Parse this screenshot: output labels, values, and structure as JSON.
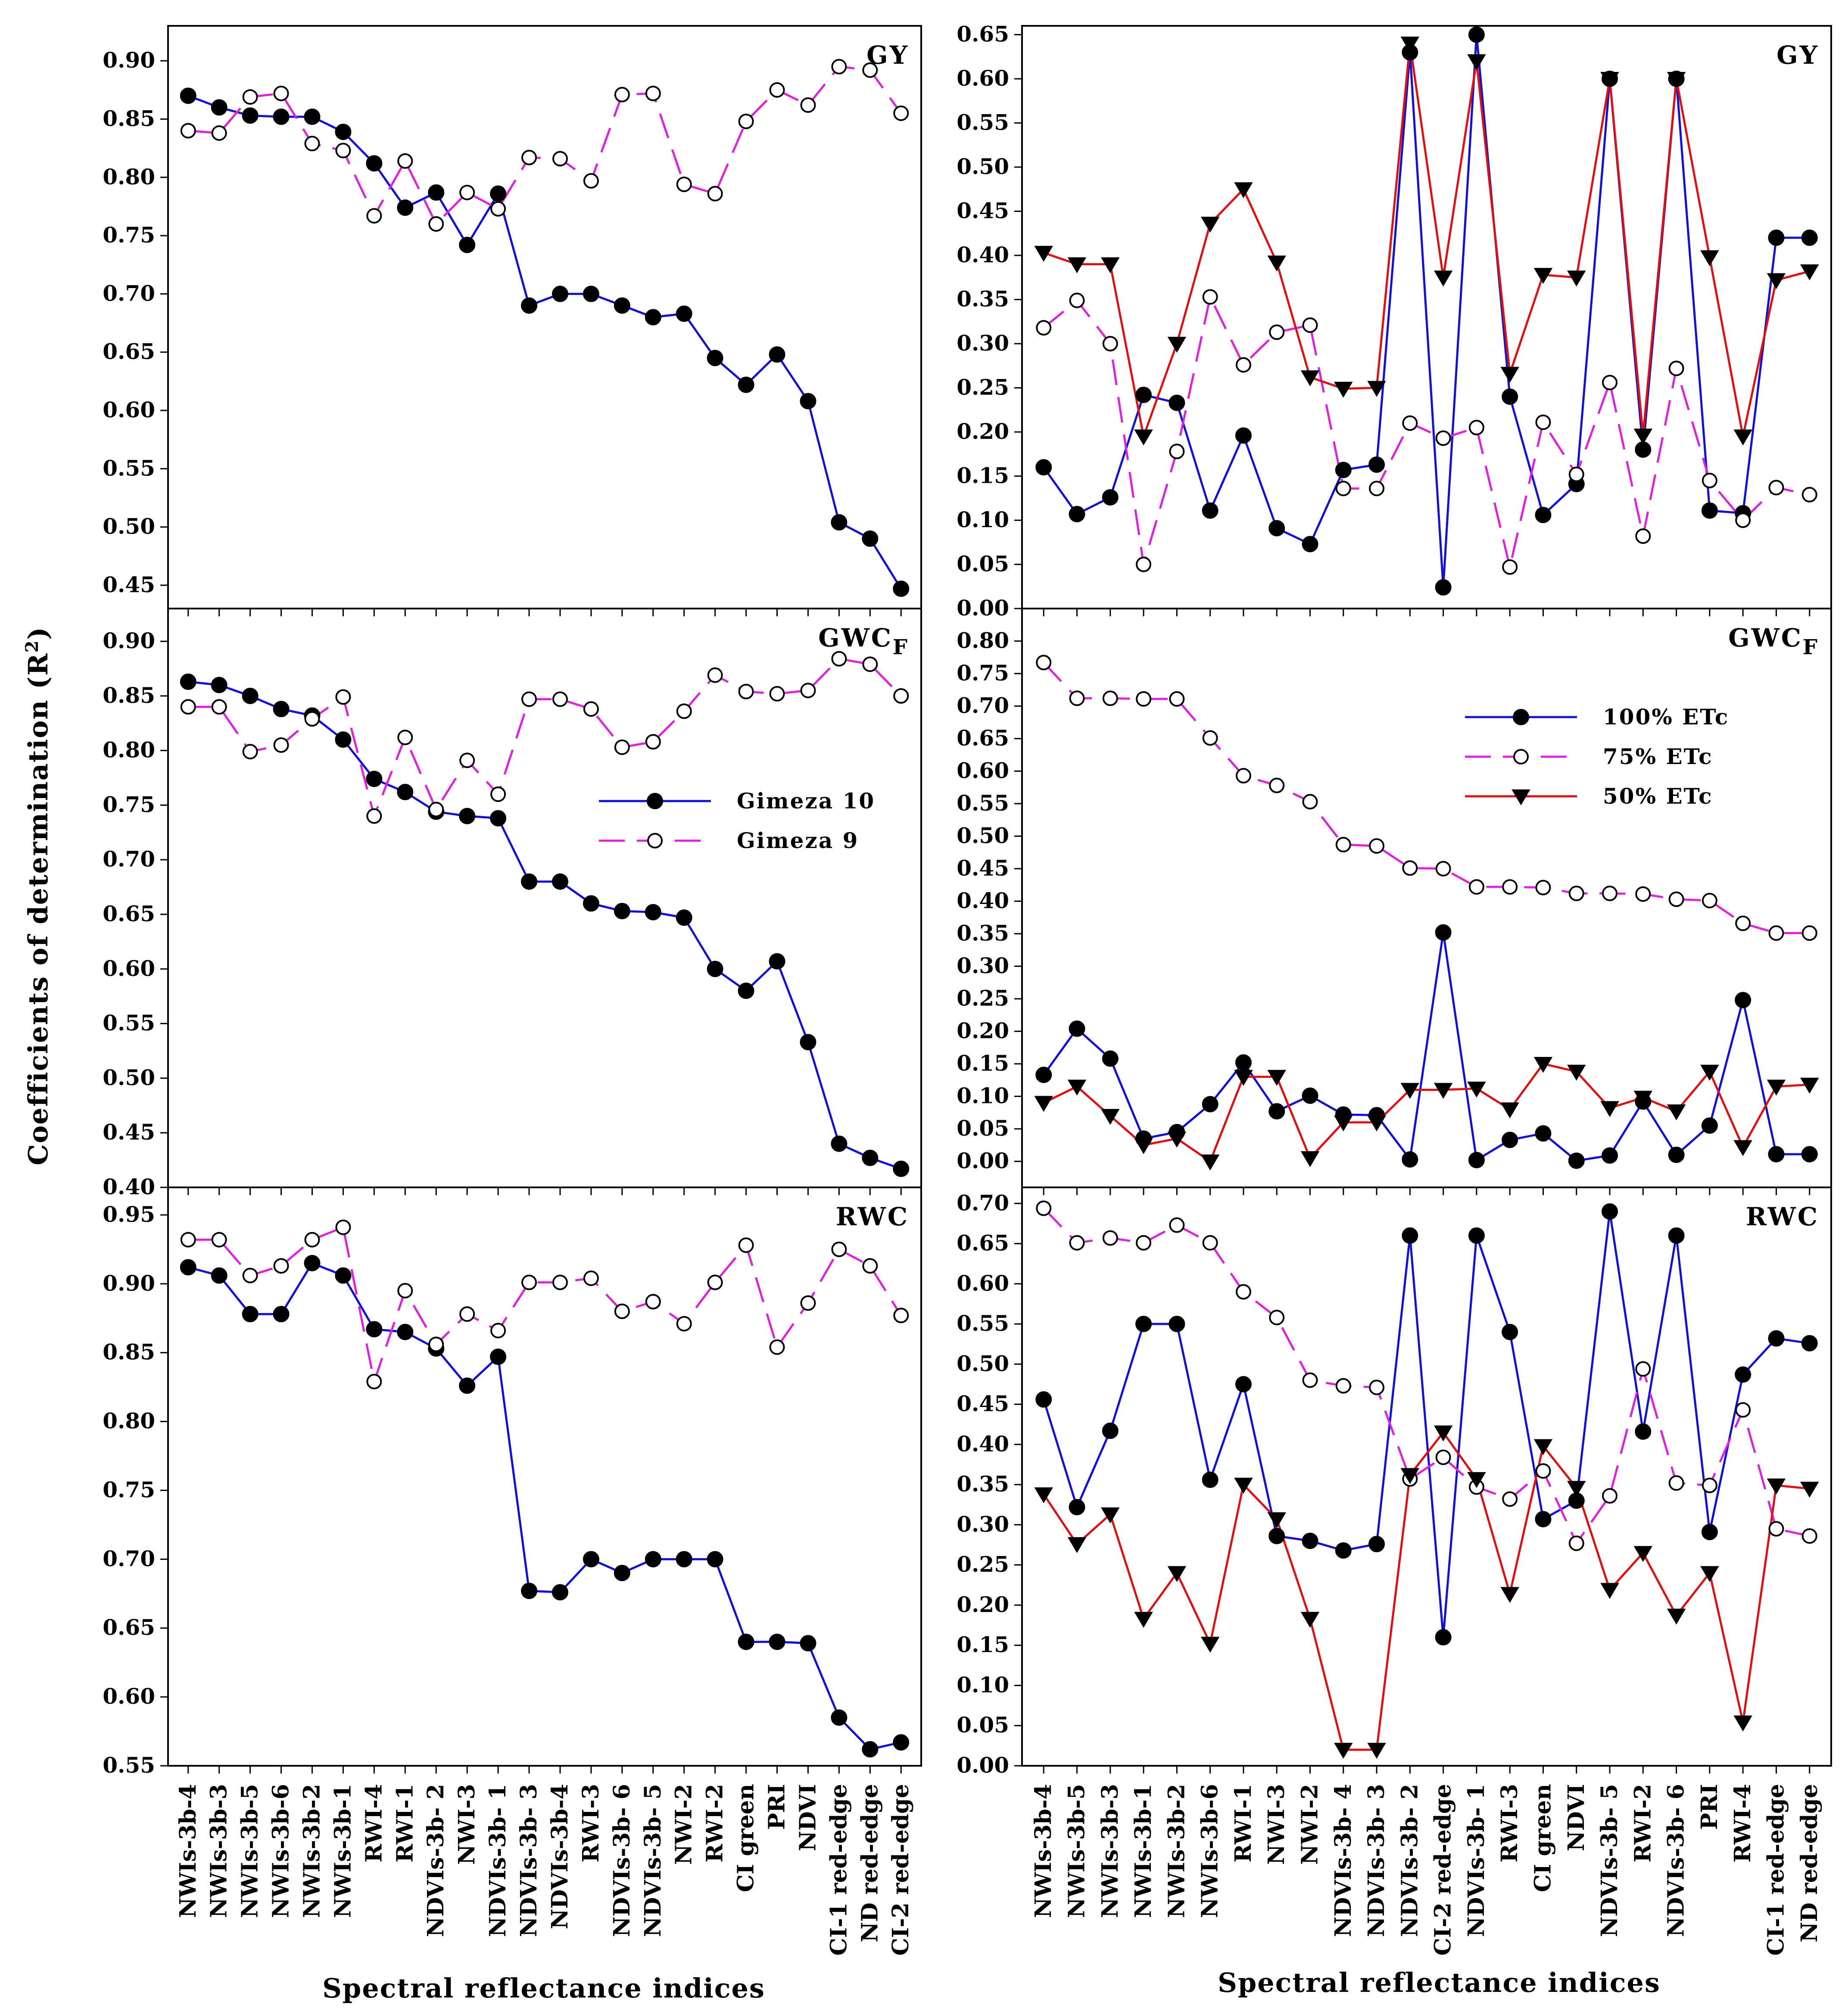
{
  "figure": {
    "ylabel_main": "Coefficients of determination (R",
    "ylabel_sup": "2",
    "ylabel_end": ")",
    "xlabel_left": "Spectral reflectance indices",
    "xlabel_right": "Spectral reflectance indices"
  },
  "colors": {
    "blue": "#1010d8",
    "magenta": "#e020e0",
    "red": "#e01010",
    "frame": "#000000"
  },
  "chart_data": [
    {
      "id": "left_gy",
      "type": "line",
      "panel_label": "GY",
      "panel_sub": "",
      "categories": [
        "NWIs-3b-4",
        "NWIs-3b-3",
        "NWIs-3b-5",
        "NWIs-3b-6",
        "NWIs-3b-2",
        "NWIs-3b-1",
        "RWI-4",
        "RWI-1",
        "NDVIs-3b- 2",
        "NWI-3",
        "NDVIs-3b- 1",
        "NDVIs-3b- 3",
        "NDVIs-3b-4",
        "RWI-3",
        "NDVIs-3b- 6",
        "NDVIs-3b- 5",
        "NWI-2",
        "RWI-2",
        "CI green",
        "PRI",
        "NDVI",
        "CI-1 red-edge",
        "ND red-edge",
        "CI-2 red-edge"
      ],
      "yticks": [
        "0.45",
        "0.50",
        "0.55",
        "0.60",
        "0.65",
        "0.70",
        "0.75",
        "0.80",
        "0.85",
        "0.90"
      ],
      "ylim": [
        0.43,
        0.93
      ],
      "series": [
        {
          "name": "Gimeza 10",
          "marker": "filled-circle",
          "color": "#1010d8",
          "dash": "solid",
          "values": [
            0.87,
            0.86,
            0.853,
            0.852,
            0.852,
            0.839,
            0.812,
            0.774,
            0.787,
            0.742,
            0.786,
            0.69,
            0.7,
            0.7,
            0.69,
            0.68,
            0.683,
            0.645,
            0.622,
            0.648,
            0.608,
            0.504,
            0.49,
            0.447
          ]
        },
        {
          "name": "Gimeza 9",
          "marker": "open-circle",
          "color": "#e020e0",
          "dash": "dashed",
          "values": [
            0.84,
            0.838,
            0.869,
            0.872,
            0.829,
            0.823,
            0.767,
            0.814,
            0.76,
            0.787,
            0.773,
            0.817,
            0.816,
            0.797,
            0.871,
            0.872,
            0.794,
            0.786,
            0.848,
            0.875,
            0.862,
            0.895,
            0.892,
            0.855
          ]
        }
      ]
    },
    {
      "id": "left_gwc",
      "type": "line",
      "panel_label": "GWC",
      "panel_sub": "F",
      "categories": [
        "NWIs-3b-4",
        "NWIs-3b-3",
        "NWIs-3b-5",
        "NWIs-3b-6",
        "NWIs-3b-2",
        "NWIs-3b-1",
        "RWI-4",
        "RWI-1",
        "NDVIs-3b- 2",
        "NWI-3",
        "NDVIs-3b- 1",
        "NDVIs-3b- 3",
        "NDVIs-3b-4",
        "RWI-3",
        "NDVIs-3b- 6",
        "NDVIs-3b- 5",
        "NWI-2",
        "RWI-2",
        "CI green",
        "PRI",
        "NDVI",
        "CI-1 red-edge",
        "ND red-edge",
        "CI-2 red-edge"
      ],
      "yticks": [
        "0.40",
        "0.45",
        "0.50",
        "0.55",
        "0.60",
        "0.65",
        "0.70",
        "0.75",
        "0.80",
        "0.85",
        "0.90"
      ],
      "ylim": [
        0.4,
        0.93
      ],
      "legend": {
        "position": "middle-right",
        "entries": [
          "Gimeza 10",
          "Gimeza 9"
        ]
      },
      "series": [
        {
          "name": "Gimeza 10",
          "marker": "filled-circle",
          "color": "#1010d8",
          "dash": "solid",
          "values": [
            0.863,
            0.86,
            0.85,
            0.838,
            0.832,
            0.81,
            0.774,
            0.762,
            0.744,
            0.74,
            0.738,
            0.68,
            0.68,
            0.66,
            0.653,
            0.652,
            0.647,
            0.6,
            0.58,
            0.607,
            0.533,
            0.44,
            0.427,
            0.417
          ]
        },
        {
          "name": "Gimeza 9",
          "marker": "open-circle",
          "color": "#e020e0",
          "dash": "dashed",
          "values": [
            0.84,
            0.84,
            0.799,
            0.805,
            0.829,
            0.849,
            0.74,
            0.812,
            0.746,
            0.791,
            0.76,
            0.847,
            0.847,
            0.838,
            0.803,
            0.808,
            0.836,
            0.869,
            0.854,
            0.852,
            0.855,
            0.884,
            0.879,
            0.85
          ]
        }
      ]
    },
    {
      "id": "left_rwc",
      "type": "line",
      "panel_label": "RWC",
      "panel_sub": "",
      "categories": [
        "NWIs-3b-4",
        "NWIs-3b-3",
        "NWIs-3b-5",
        "NWIs-3b-6",
        "NWIs-3b-2",
        "NWIs-3b-1",
        "RWI-4",
        "RWI-1",
        "NDVIs-3b- 2",
        "NWI-3",
        "NDVIs-3b- 1",
        "NDVIs-3b- 3",
        "NDVIs-3b-4",
        "RWI-3",
        "NDVIs-3b- 6",
        "NDVIs-3b- 5",
        "NWI-2",
        "RWI-2",
        "CI green",
        "PRI",
        "NDVI",
        "CI-1 red-edge",
        "ND red-edge",
        "CI-2 red-edge"
      ],
      "yticks": [
        "0.55",
        "0.60",
        "0.65",
        "0.70",
        "0.75",
        "0.80",
        "0.85",
        "0.90",
        "0.95"
      ],
      "ylim": [
        0.55,
        0.97
      ],
      "series": [
        {
          "name": "Gimeza 10",
          "marker": "filled-circle",
          "color": "#1010d8",
          "dash": "solid",
          "values": [
            0.912,
            0.906,
            0.878,
            0.878,
            0.915,
            0.906,
            0.867,
            0.865,
            0.853,
            0.826,
            0.847,
            0.677,
            0.676,
            0.7,
            0.69,
            0.7,
            0.7,
            0.7,
            0.64,
            0.64,
            0.639,
            0.585,
            0.562,
            0.567
          ]
        },
        {
          "name": "Gimeza 9",
          "marker": "open-circle",
          "color": "#e020e0",
          "dash": "dashed",
          "values": [
            0.932,
            0.932,
            0.906,
            0.913,
            0.932,
            0.941,
            0.829,
            0.895,
            0.856,
            0.878,
            0.866,
            0.901,
            0.901,
            0.904,
            0.88,
            0.887,
            0.871,
            0.901,
            0.928,
            0.854,
            0.886,
            0.925,
            0.913,
            0.877
          ]
        }
      ]
    },
    {
      "id": "right_gy",
      "type": "line",
      "panel_label": "GY",
      "panel_sub": "",
      "categories": [
        "NWIs-3b-4",
        "NWIs-3b-5",
        "NWIs-3b-3",
        "NWIs-3b-1",
        "NWIs-3b-2",
        "NWIs-3b-6",
        "RWI-1",
        "NWI-3",
        "NWI-2",
        "NDVIs-3b- 4",
        "NDVIs-3b- 3",
        "NDVIs-3b- 2",
        "CI-2 red-edge",
        "NDVIs-3b- 1",
        "RWI-3",
        "CI green",
        "NDVI",
        "NDVIs-3b- 5",
        "RWI-2",
        "NDVIs-3b- 6",
        "PRI",
        "RWI-4",
        "CI-1 red-edge",
        "ND red-edge"
      ],
      "yticks": [
        "0.00",
        "0.05",
        "0.10",
        "0.15",
        "0.20",
        "0.25",
        "0.30",
        "0.35",
        "0.40",
        "0.45",
        "0.50",
        "0.55",
        "0.60",
        "0.65"
      ],
      "ylim": [
        0.0,
        0.66
      ],
      "series": [
        {
          "name": "100% ETc",
          "marker": "filled-circle",
          "color": "#1010d8",
          "dash": "solid",
          "values": [
            0.16,
            0.107,
            0.126,
            0.242,
            0.233,
            0.111,
            0.196,
            0.091,
            0.073,
            0.157,
            0.163,
            0.63,
            0.024,
            0.65,
            0.24,
            0.106,
            0.141,
            0.6,
            0.18,
            0.6,
            0.111,
            0.108,
            0.42,
            0.42
          ]
        },
        {
          "name": "75% ETc",
          "marker": "open-circle",
          "color": "#e020e0",
          "dash": "dashed",
          "values": [
            0.318,
            0.349,
            0.3,
            0.05,
            0.178,
            0.353,
            0.276,
            0.313,
            0.321,
            0.136,
            0.136,
            0.21,
            0.193,
            0.205,
            0.047,
            0.211,
            0.152,
            0.256,
            0.082,
            0.272,
            0.145,
            0.1,
            0.137,
            0.129
          ]
        },
        {
          "name": "50% ETc",
          "marker": "filled-triangle",
          "color": "#e01010",
          "dash": "solid",
          "values": [
            0.403,
            0.39,
            0.39,
            0.195,
            0.3,
            0.436,
            0.475,
            0.392,
            0.262,
            0.249,
            0.25,
            0.64,
            0.375,
            0.62,
            0.266,
            0.378,
            0.375,
            0.6,
            0.196,
            0.6,
            0.398,
            0.195,
            0.372,
            0.382
          ]
        }
      ]
    },
    {
      "id": "right_gwc",
      "type": "line",
      "panel_label": "GWC",
      "panel_sub": "F",
      "categories": [
        "NWIs-3b-4",
        "NWIs-3b-5",
        "NWIs-3b-3",
        "NWIs-3b-1",
        "NWIs-3b-2",
        "NWIs-3b-6",
        "RWI-1",
        "NWI-3",
        "NWI-2",
        "NDVIs-3b- 4",
        "NDVIs-3b- 3",
        "NDVIs-3b- 2",
        "CI-2 red-edge",
        "NDVIs-3b- 1",
        "RWI-3",
        "CI green",
        "NDVI",
        "NDVIs-3b- 5",
        "RWI-2",
        "NDVIs-3b- 6",
        "PRI",
        "RWI-4",
        "CI-1 red-edge",
        "ND red-edge"
      ],
      "yticks": [
        "0.00",
        "0.05",
        "0.10",
        "0.15",
        "0.20",
        "0.25",
        "0.30",
        "0.35",
        "0.40",
        "0.45",
        "0.50",
        "0.55",
        "0.60",
        "0.65",
        "0.70",
        "0.75",
        "0.80"
      ],
      "ylim": [
        -0.04,
        0.85
      ],
      "legend": {
        "position": "upper-right",
        "entries": [
          "100% ETc",
          "75% ETc",
          "50% ETc"
        ]
      },
      "series": [
        {
          "name": "100% ETc",
          "marker": "filled-circle",
          "color": "#1010d8",
          "dash": "solid",
          "values": [
            0.133,
            0.204,
            0.158,
            0.035,
            0.045,
            0.088,
            0.152,
            0.077,
            0.101,
            0.072,
            0.071,
            0.003,
            0.352,
            0.002,
            0.033,
            0.043,
            0.001,
            0.009,
            0.092,
            0.01,
            0.055,
            0.248,
            0.011,
            0.011
          ]
        },
        {
          "name": "75% ETc",
          "marker": "open-circle",
          "color": "#e020e0",
          "dash": "dashed",
          "values": [
            0.767,
            0.712,
            0.712,
            0.711,
            0.711,
            0.651,
            0.593,
            0.578,
            0.553,
            0.487,
            0.485,
            0.451,
            0.45,
            0.422,
            0.422,
            0.421,
            0.412,
            0.412,
            0.411,
            0.403,
            0.401,
            0.366,
            0.351,
            0.351
          ]
        },
        {
          "name": "50% ETc",
          "marker": "filled-triangle",
          "color": "#e01010",
          "dash": "solid",
          "values": [
            0.09,
            0.115,
            0.07,
            0.025,
            0.035,
            0.0,
            0.13,
            0.13,
            0.005,
            0.06,
            0.06,
            0.11,
            0.11,
            0.112,
            0.08,
            0.15,
            0.138,
            0.082,
            0.098,
            0.077,
            0.138,
            0.022,
            0.115,
            0.118
          ]
        }
      ]
    },
    {
      "id": "right_rwc",
      "type": "line",
      "panel_label": "RWC",
      "panel_sub": "",
      "categories": [
        "NWIs-3b-4",
        "NWIs-3b-5",
        "NWIs-3b-3",
        "NWIs-3b-1",
        "NWIs-3b-2",
        "NWIs-3b-6",
        "RWI-1",
        "NWI-3",
        "NWI-2",
        "NDVIs-3b- 4",
        "NDVIs-3b- 3",
        "NDVIs-3b- 2",
        "CI-2 red-edge",
        "NDVIs-3b- 1",
        "RWI-3",
        "CI green",
        "NDVI",
        "NDVIs-3b- 5",
        "RWI-2",
        "NDVIs-3b- 6",
        "PRI",
        "RWI-4",
        "CI-1 red-edge",
        "ND red-edge"
      ],
      "yticks": [
        "0.00",
        "0.05",
        "0.10",
        "0.15",
        "0.20",
        "0.25",
        "0.30",
        "0.35",
        "0.40",
        "0.45",
        "0.50",
        "0.55",
        "0.60",
        "0.65",
        "0.70"
      ],
      "ylim": [
        0.0,
        0.72
      ],
      "series": [
        {
          "name": "100% ETc",
          "marker": "filled-circle",
          "color": "#1010d8",
          "dash": "solid",
          "values": [
            0.456,
            0.322,
            0.417,
            0.55,
            0.55,
            0.356,
            0.475,
            0.286,
            0.28,
            0.268,
            0.276,
            0.66,
            0.16,
            0.66,
            0.54,
            0.307,
            0.33,
            0.69,
            0.416,
            0.66,
            0.291,
            0.487,
            0.532,
            0.526
          ]
        },
        {
          "name": "75% ETc",
          "marker": "open-circle",
          "color": "#e020e0",
          "dash": "dashed",
          "values": [
            0.694,
            0.651,
            0.657,
            0.651,
            0.673,
            0.651,
            0.59,
            0.558,
            0.48,
            0.473,
            0.471,
            0.357,
            0.384,
            0.347,
            0.332,
            0.367,
            0.277,
            0.336,
            0.494,
            0.352,
            0.349,
            0.443,
            0.295,
            0.286
          ]
        },
        {
          "name": "50% ETc",
          "marker": "filled-triangle",
          "color": "#e01010",
          "dash": "solid",
          "values": [
            0.338,
            0.276,
            0.313,
            0.183,
            0.24,
            0.152,
            0.35,
            0.307,
            0.183,
            0.02,
            0.02,
            0.362,
            0.415,
            0.357,
            0.214,
            0.398,
            0.346,
            0.219,
            0.265,
            0.187,
            0.24,
            0.054,
            0.349,
            0.345
          ]
        }
      ]
    }
  ]
}
